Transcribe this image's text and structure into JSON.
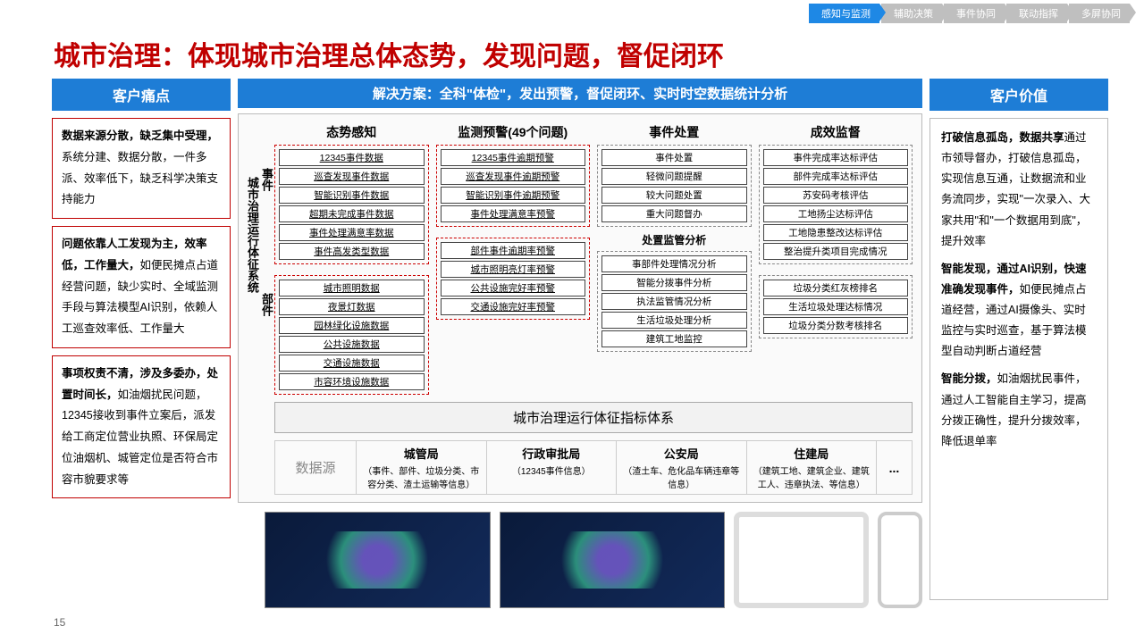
{
  "nav": [
    "感知与监测",
    "辅助决策",
    "事件协同",
    "联动指挥",
    "多屏协同"
  ],
  "nav_active": 0,
  "title": "城市治理：体现城市治理总体态势，发现问题，督促闭环",
  "left_header": "客户痛点",
  "mid_header": "解决方案：全科\"体检\"，发出预警，督促闭环、实时时空数据统计分析",
  "right_header": "客户价值",
  "pains": [
    {
      "bold": "数据来源分散，缺乏集中受理，",
      "rest": "系统分建、数据分散，一件多派、效率低下，缺乏科学决策支持能力"
    },
    {
      "bold": "问题依靠人工发现为主，效率低，工作量大，",
      "rest": "如便民摊点占道经营问题，缺少实时、全域监测手段与算法模型AI识别，依赖人工巡查效率低、工作量大"
    },
    {
      "bold": "事项权责不清，涉及多委办，处置时间长，",
      "rest": "如油烟扰民问题，12345接收到事件立案后，派发给工商定位营业执照、环保局定位油烟机、城管定位是否符合市容市貌要求等"
    }
  ],
  "values": [
    {
      "bold": "打破信息孤岛，数据共享",
      "rest": "通过市领导督办，打破信息孤岛，实现信息互通，让数据流和业务流同步，实现\"一次录入、大家共用\"和\"一个数据用到底\"，提升效率"
    },
    {
      "bold": "智能发现，通过AI识别，快速准确发现事件，",
      "rest": "如便民摊点占道经营，通过AI摄像头、实时监控与实时巡查，基于算法模型自动判断占道经营"
    },
    {
      "bold": "智能分拨，",
      "rest": "如油烟扰民事件，通过人工智能自主学习，提高分拨正确性，提升分拨效率，降低退单率"
    }
  ],
  "vert_main": "城市治理运行体征系统",
  "vert_event": "事件",
  "vert_dept": "部件",
  "cols": [
    {
      "title": "态势感知",
      "g1": [
        "12345事件数据",
        "巡查发现事件数据",
        "智能识别事件数据",
        "超期未完成事件数据",
        "事件处理满意率数据",
        "事件高发类型数据"
      ],
      "g2": [
        "城市照明数据",
        "夜景灯数据",
        "园林绿化设施数据",
        "公共设施数据",
        "交通设施数据",
        "市容环境设施数据"
      ]
    },
    {
      "title": "监测预警(49个问题)",
      "g1": [
        "12345事件逾期预警",
        "巡查发现事件逾期预警",
        "智能识别事件逾期预警",
        "事件处理满意率预警"
      ],
      "g2": [
        "部件事件逾期率预警",
        "城市照明亮灯率预警",
        "公共设施完好率预警",
        "交通设施完好率预警"
      ]
    },
    {
      "title": "事件处置",
      "g1": [
        "事件处置",
        "轻微问题提醒",
        "较大问题处置",
        "重大问题督办"
      ],
      "g2title": "处置监管分析",
      "g2": [
        "事部件处理情况分析",
        "智能分拨事件分析",
        "执法监管情况分析",
        "生活垃圾处理分析",
        "建筑工地监控"
      ]
    },
    {
      "title": "成效监督",
      "g1": [
        "事件完成率达标评估",
        "部件完成率达标评估",
        "苏安码考核评估",
        "工地扬尘达标评估",
        "工地隐患整改达标评估",
        "整治提升类项目完成情况"
      ],
      "g2": [
        "垃圾分类红灰榜排名",
        "生活垃圾处理达标情况",
        "垃圾分类分数考核排名"
      ]
    }
  ],
  "indicator": "城市治理运行体征指标体系",
  "ds_label": "数据源",
  "ds": [
    {
      "t": "城管局",
      "d": "（事件、部件、垃圾分类、市容分类、渣土运输等信息）"
    },
    {
      "t": "行政审批局",
      "d": "（12345事件信息）"
    },
    {
      "t": "公安局",
      "d": "（渣土车、危化品车辆违章等信息）"
    },
    {
      "t": "住建局",
      "d": "（建筑工地、建筑企业、建筑工人、违章执法、等信息）"
    }
  ],
  "page": "15"
}
